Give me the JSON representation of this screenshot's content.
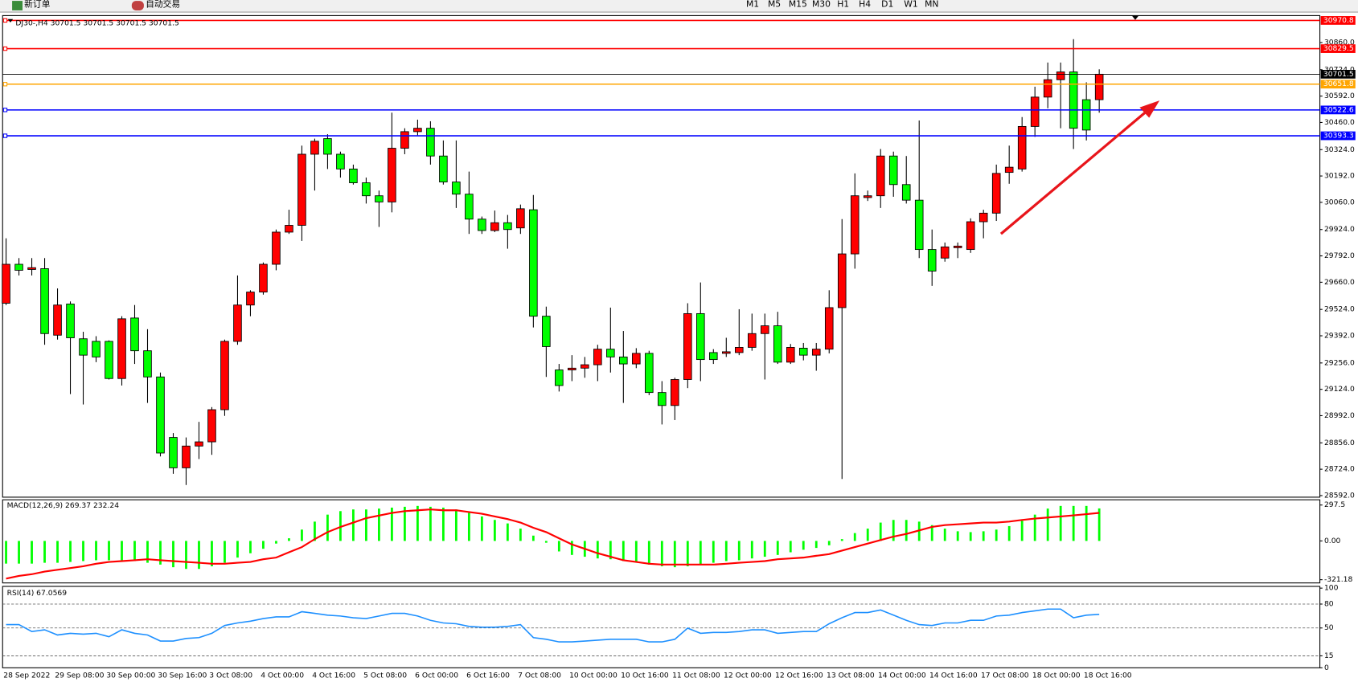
{
  "toolbar": {
    "buttons": [
      "新订单",
      "自动交易"
    ],
    "timeframes": [
      "M1",
      "M5",
      "M15",
      "M30",
      "H1",
      "H4",
      "D1",
      "W1",
      "MN"
    ]
  },
  "chart_data": [
    {
      "type": "candlestick",
      "title": "DJ30-,H4  30701.5 30701.5 30701.5 30701.5",
      "up_color": "#ff0000",
      "down_color": "#00ff00",
      "categories": [
        "28 Sep 2022",
        null,
        null,
        null,
        "29 Sep 08:00",
        null,
        null,
        null,
        "30 Sep 00:00",
        null,
        null,
        null,
        "30 Sep 16:00",
        null,
        null,
        null,
        "3 Oct 08:00",
        null,
        null,
        null,
        "4 Oct 00:00",
        null,
        null,
        null,
        "4 Oct 16:00",
        null,
        null,
        null,
        "5 Oct 08:00",
        null,
        null,
        null,
        "6 Oct 00:00",
        null,
        null,
        null,
        "6 Oct 16:00",
        null,
        null,
        null,
        "7 Oct 08:00",
        null,
        null,
        null,
        "10 Oct 00:00",
        null,
        null,
        null,
        "10 Oct 16:00",
        null,
        null,
        null,
        "11 Oct 08:00",
        null,
        null,
        null,
        "12 Oct 00:00",
        null,
        null,
        null,
        "12 Oct 16:00",
        null,
        null,
        null,
        "13 Oct 08:00",
        null,
        null,
        null,
        "14 Oct 00:00",
        null,
        null,
        null,
        "14 Oct 16:00",
        null,
        null,
        null,
        "17 Oct 08:00",
        null,
        null,
        null,
        "18 Oct 00:00",
        null,
        null,
        null,
        "18 Oct 16:00",
        null
      ],
      "open": [
        29555,
        29750,
        29724,
        29728,
        29395,
        29551,
        29377,
        29364,
        29364,
        29178,
        29481,
        29317,
        29186,
        28883,
        28731,
        28840,
        28861,
        29022,
        29364,
        29546,
        29611,
        29750,
        29911,
        29945,
        30301,
        30379,
        30301,
        30227,
        30158,
        30093,
        30062,
        30331,
        30414,
        30431,
        30292,
        30162,
        30101,
        29976,
        29919,
        29958,
        29932,
        30023,
        29490,
        29221,
        29221,
        29230,
        29247,
        29325,
        29286,
        29251,
        29304,
        29108,
        29043,
        29173,
        29503,
        29308,
        29304,
        29308,
        29334,
        29403,
        29442,
        29260,
        29330,
        29295,
        29325,
        29533,
        29802,
        30084,
        30093,
        30292,
        30149,
        30071,
        29824,
        29781,
        29833,
        29824,
        29963,
        30006,
        30210,
        30227,
        30440,
        30587,
        30674,
        30713,
        30574,
        30574
      ],
      "high": [
        29880,
        29781,
        29781,
        29781,
        29629,
        29564,
        29412,
        29390,
        29369,
        29490,
        29546,
        29425,
        29208,
        28905,
        28883,
        28961,
        29035,
        29373,
        29694,
        29620,
        29759,
        29924,
        30023,
        30344,
        30379,
        30401,
        30314,
        30249,
        30184,
        30119,
        30509,
        30431,
        30474,
        30466,
        30370,
        30370,
        30214,
        29989,
        30019,
        29997,
        30049,
        30097,
        29538,
        29251,
        29295,
        29286,
        29347,
        29533,
        29416,
        29330,
        29317,
        29165,
        29182,
        29555,
        29659,
        29325,
        29382,
        29525,
        29503,
        29503,
        29512,
        29351,
        29356,
        29356,
        29620,
        29976,
        30205,
        30119,
        30327,
        30314,
        30292,
        30470,
        29924,
        29859,
        29859,
        29980,
        30023,
        30249,
        30344,
        30487,
        30639,
        30760,
        30760,
        30877,
        30661,
        30726
      ],
      "low": [
        29546,
        29694,
        29694,
        29347,
        29373,
        29100,
        29048,
        29260,
        29173,
        29143,
        29251,
        29056,
        28788,
        28701,
        28645,
        28775,
        28796,
        28991,
        29347,
        29490,
        29598,
        29720,
        29902,
        29867,
        30119,
        30227,
        30184,
        30149,
        30054,
        29937,
        30010,
        30301,
        30396,
        30249,
        30149,
        30032,
        29902,
        29902,
        29911,
        29828,
        29902,
        29434,
        29186,
        29113,
        29165,
        29182,
        29165,
        29208,
        29056,
        29230,
        29095,
        28948,
        28970,
        29130,
        29165,
        29251,
        29286,
        29295,
        29317,
        29173,
        29251,
        29251,
        29269,
        29217,
        29304,
        28675,
        29728,
        30067,
        30032,
        30088,
        30054,
        29781,
        29642,
        29763,
        29781,
        29807,
        29880,
        29967,
        30153,
        30214,
        30388,
        30531,
        30431,
        30327,
        30370,
        30509
      ],
      "close": [
        29750,
        29720,
        29733,
        29403,
        29546,
        29382,
        29295,
        29286,
        29178,
        29477,
        29317,
        29186,
        28805,
        28731,
        28840,
        28861,
        29022,
        29364,
        29546,
        29611,
        29750,
        29911,
        29945,
        30301,
        30366,
        30301,
        30227,
        30158,
        30093,
        30062,
        30331,
        30414,
        30431,
        30292,
        30162,
        30101,
        29976,
        29919,
        29958,
        29924,
        30028,
        29490,
        29338,
        29143,
        29230,
        29247,
        29325,
        29286,
        29251,
        29304,
        29108,
        29043,
        29173,
        29503,
        29273,
        29273,
        29312,
        29334,
        29403,
        29442,
        29260,
        29334,
        29295,
        29325,
        29533,
        29802,
        30093,
        30093,
        30292,
        30149,
        30071,
        29824,
        29716,
        29837,
        29841,
        29963,
        30006,
        30205,
        30236,
        30440,
        30587,
        30674,
        30713,
        30431,
        30422,
        30701.5
      ],
      "ylim": [
        28584,
        30995
      ],
      "yticks": [
        {
          "value": 30860,
          "label": "30860.0"
        },
        {
          "value": 30724,
          "label": "30724.0"
        },
        {
          "value": 30592,
          "label": "30592.0"
        },
        {
          "value": 30460,
          "label": "30460.0"
        },
        {
          "value": 30324,
          "label": "30324.0"
        },
        {
          "value": 30192,
          "label": "30192.0"
        },
        {
          "value": 30060,
          "label": "30060.0"
        },
        {
          "value": 29924,
          "label": "29924.0"
        },
        {
          "value": 29792,
          "label": "29792.0"
        },
        {
          "value": 29660,
          "label": "29660.0"
        },
        {
          "value": 29524,
          "label": "29524.0"
        },
        {
          "value": 29392,
          "label": "29392.0"
        },
        {
          "value": 29256,
          "label": "29256.0"
        },
        {
          "value": 29124,
          "label": "29124.0"
        },
        {
          "value": 28992,
          "label": "28992.0"
        },
        {
          "value": 28856,
          "label": "28856.0"
        },
        {
          "value": 28724,
          "label": "28724.0"
        },
        {
          "value": 28592,
          "label": "28592.0"
        }
      ],
      "hlines": [
        {
          "value": 30970.8,
          "color": "#ff0000"
        },
        {
          "value": 30829.5,
          "color": "#ff0000"
        },
        {
          "value": 30651.8,
          "color": "#ffa500"
        },
        {
          "value": 30522.6,
          "color": "#0000ff"
        },
        {
          "value": 30393.3,
          "color": "#0000ff"
        }
      ],
      "last_price": 30701.5
    },
    {
      "type": "macd",
      "title": "MACD(12,26,9) 269.37 232.24",
      "histogram": {
        "color": "#00ff00",
        "values": [
          -188,
          -188,
          -188,
          -181,
          -181,
          -174,
          -167,
          -160,
          -160,
          -160,
          -167,
          -181,
          -196,
          -218,
          -232,
          -232,
          -210,
          -181,
          -138,
          -102,
          -65,
          -22,
          22,
          94,
          160,
          218,
          247,
          261,
          261,
          268,
          276,
          283,
          290,
          283,
          276,
          261,
          232,
          203,
          174,
          145,
          102,
          44,
          -15,
          -87,
          -116,
          -131,
          -145,
          -152,
          -167,
          -174,
          -196,
          -210,
          -218,
          -210,
          -196,
          -181,
          -167,
          -160,
          -145,
          -131,
          -116,
          -94,
          -73,
          -58,
          -36,
          15,
          65,
          102,
          152,
          174,
          174,
          160,
          131,
          102,
          80,
          73,
          80,
          94,
          123,
          167,
          218,
          268,
          290,
          290,
          290,
          269.37
        ]
      },
      "signal": {
        "color": "#ff0000",
        "values": [
          -312,
          -290,
          -276,
          -254,
          -239,
          -225,
          -210,
          -189,
          -174,
          -167,
          -160,
          -152,
          -160,
          -167,
          -174,
          -181,
          -189,
          -189,
          -181,
          -174,
          -152,
          -138,
          -94,
          -51,
          15,
          73,
          116,
          152,
          189,
          210,
          232,
          247,
          254,
          261,
          254,
          254,
          239,
          225,
          203,
          181,
          152,
          109,
          73,
          22,
          -29,
          -65,
          -102,
          -131,
          -160,
          -174,
          -189,
          -196,
          -196,
          -196,
          -196,
          -196,
          -189,
          -181,
          -174,
          -167,
          -152,
          -145,
          -138,
          -123,
          -109,
          -80,
          -51,
          -22,
          7,
          36,
          58,
          87,
          116,
          131,
          138,
          145,
          152,
          152,
          160,
          174,
          185,
          194,
          203,
          212,
          222,
          232.24
        ]
      },
      "ylim": [
        -348,
        341
      ],
      "yticks": [
        297.5,
        {
          "value": 0,
          "label": "0.00"
        },
        -321.18
      ]
    },
    {
      "type": "line",
      "title": "RSI(14) 67.0569",
      "color": "#1e90ff",
      "values": [
        54.2,
        54.2,
        45.5,
        47.7,
        41.2,
        43.3,
        42.3,
        43.3,
        39,
        47.7,
        43.3,
        41.2,
        33.6,
        33.6,
        36.8,
        37.9,
        43.3,
        53.1,
        56.3,
        58.5,
        61.8,
        63.9,
        63.9,
        70.4,
        68.3,
        66.1,
        65,
        62.8,
        61.8,
        65,
        68.3,
        68.3,
        65,
        59.6,
        56.3,
        55.3,
        52,
        50.9,
        50.9,
        52,
        54.2,
        37.9,
        35.8,
        32.5,
        32.5,
        33.6,
        34.7,
        35.8,
        35.8,
        35.8,
        32.5,
        32.5,
        35.8,
        49.8,
        43.3,
        44.4,
        44.4,
        45.5,
        47.7,
        47.7,
        43.3,
        44.4,
        45.5,
        45.5,
        55.3,
        62.8,
        69.3,
        69.3,
        72.6,
        66.1,
        59.6,
        54.2,
        53.1,
        56.3,
        56.3,
        59.6,
        59.6,
        65,
        66.1,
        69.3,
        71.5,
        73.7,
        73.7,
        62.8,
        66.1,
        67.0569
      ],
      "ylim": [
        0,
        100
      ],
      "yticks": [
        100,
        80,
        50,
        15,
        0
      ],
      "levels": [
        80,
        50,
        15
      ]
    }
  ]
}
